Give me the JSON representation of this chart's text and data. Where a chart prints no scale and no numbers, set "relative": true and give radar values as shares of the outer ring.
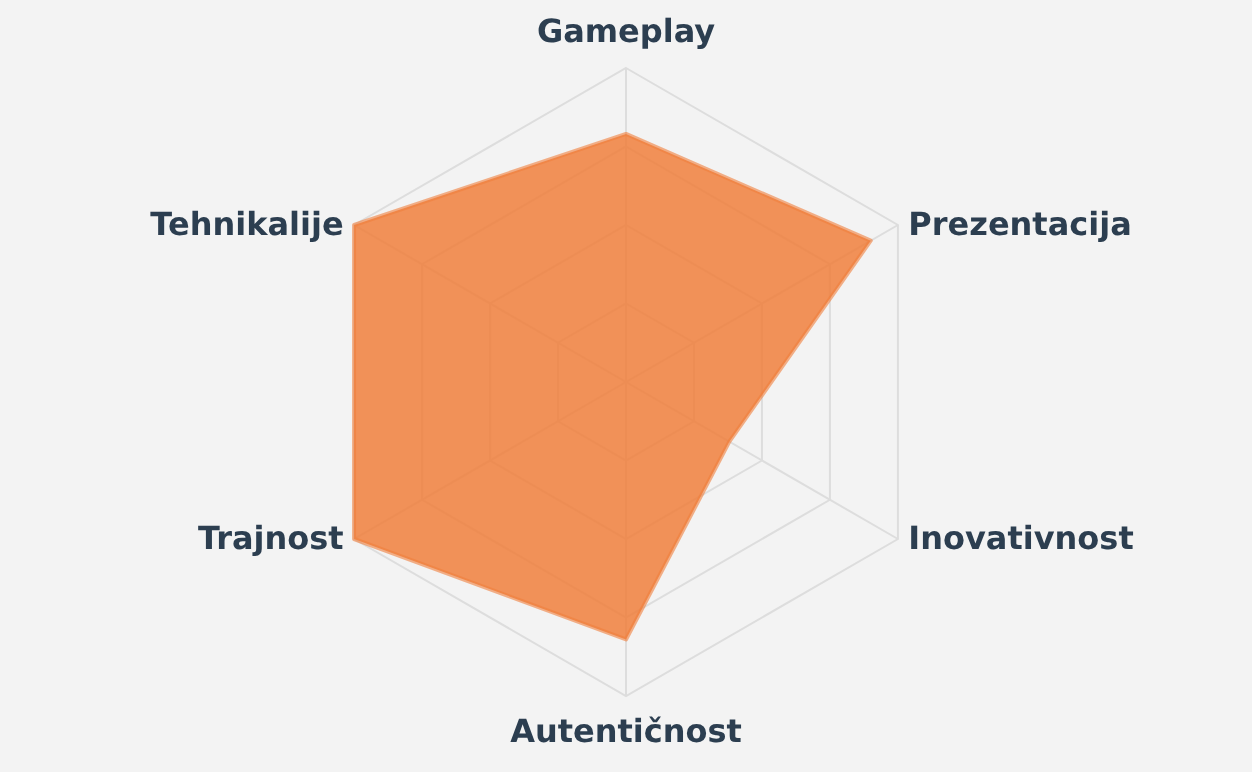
{
  "chart_data": {
    "type": "radar",
    "relative": true,
    "grid": true,
    "categories": [
      "Gameplay",
      "Prezentacija",
      "Inovativnost",
      "Autentičnost",
      "Trajnost",
      "Tehnikalije"
    ],
    "series": [
      {
        "color": "#f07f3c",
        "values": [
          0.79,
          0.9,
          0.38,
          0.82,
          1,
          1
        ]
      }
    ]
  }
}
